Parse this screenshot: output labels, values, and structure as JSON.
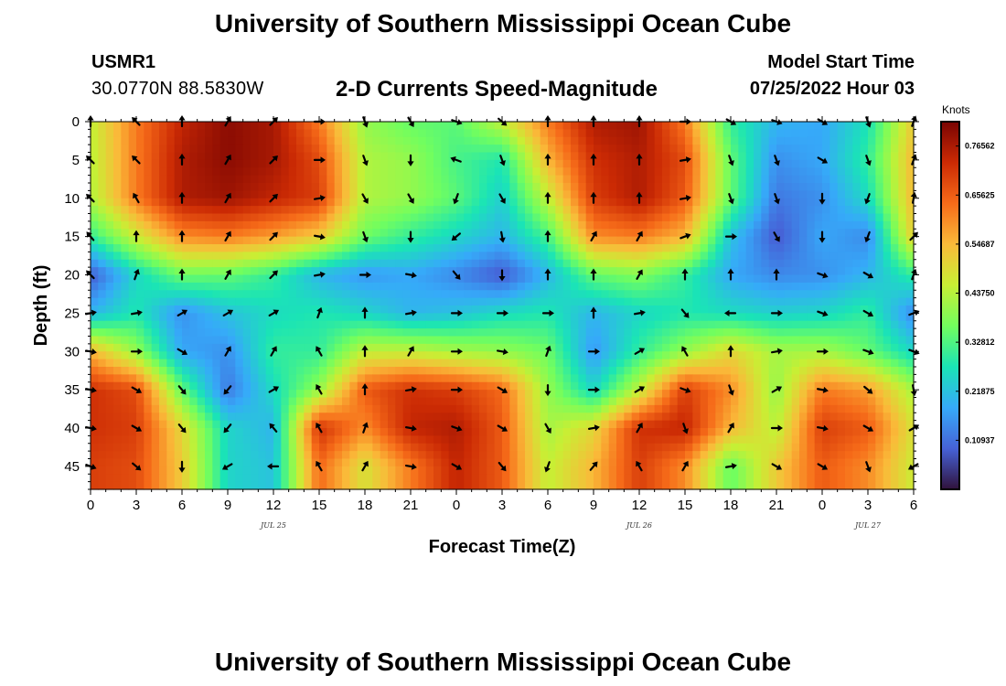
{
  "header": {
    "title": "University of Southern Mississippi Ocean Cube",
    "station_id": "USMR1",
    "station_coords": "30.0770N  88.5830W",
    "plot_title": "2-D Currents Speed-Magnitude",
    "model_label": "Model Start Time",
    "model_time": "07/25/2022 Hour 03"
  },
  "footer": {
    "title": "University of Southern Mississippi Ocean Cube"
  },
  "colors": {
    "palette": [
      "#30123b",
      "#4662d7",
      "#36aaf9",
      "#1ae4b6",
      "#72fe5e",
      "#c8ef34",
      "#faba39",
      "#f66b19",
      "#cb2a04",
      "#7a0403"
    ]
  },
  "chart_data": {
    "type": "heatmap",
    "title": "2-D Currents Speed-Magnitude",
    "xlabel": "Forecast Time(Z)",
    "ylabel": "Depth (ft)",
    "x_hours_from_jul25_00z": [
      0,
      3,
      6,
      9,
      12,
      15,
      18,
      21,
      24,
      27,
      30,
      33,
      36,
      39,
      42,
      45,
      48,
      51,
      54
    ],
    "x_tick_labels": [
      "0",
      "3",
      "6",
      "9",
      "12",
      "15",
      "18",
      "21",
      "0",
      "3",
      "6",
      "9",
      "12",
      "15",
      "18",
      "21",
      "0",
      "3",
      "6"
    ],
    "date_labels": [
      {
        "label": "JUL 25",
        "hour": 12
      },
      {
        "label": "JUL 26",
        "hour": 36
      },
      {
        "label": "JUL 27",
        "hour": 51
      }
    ],
    "xlim": [
      0,
      54
    ],
    "depths_ft": [
      0,
      5,
      10,
      15,
      20,
      25,
      30,
      35,
      40,
      45
    ],
    "y_tick_labels": [
      "0",
      "5",
      "10",
      "15",
      "20",
      "25",
      "30",
      "35",
      "40",
      "45"
    ],
    "ylim": [
      0,
      48
    ],
    "speed_knots": [
      [
        0.45,
        0.62,
        0.74,
        0.8,
        0.77,
        0.62,
        0.4,
        0.35,
        0.34,
        0.45,
        0.62,
        0.76,
        0.78,
        0.62,
        0.3,
        0.2,
        0.18,
        0.27,
        0.52
      ],
      [
        0.44,
        0.62,
        0.76,
        0.8,
        0.77,
        0.68,
        0.43,
        0.4,
        0.32,
        0.28,
        0.55,
        0.72,
        0.76,
        0.68,
        0.35,
        0.15,
        0.18,
        0.3,
        0.55
      ],
      [
        0.43,
        0.62,
        0.76,
        0.78,
        0.74,
        0.7,
        0.43,
        0.4,
        0.34,
        0.24,
        0.45,
        0.7,
        0.76,
        0.66,
        0.35,
        0.12,
        0.15,
        0.26,
        0.55
      ],
      [
        0.3,
        0.46,
        0.6,
        0.62,
        0.58,
        0.52,
        0.36,
        0.3,
        0.25,
        0.2,
        0.32,
        0.6,
        0.62,
        0.55,
        0.22,
        0.08,
        0.18,
        0.14,
        0.52
      ],
      [
        0.08,
        0.25,
        0.36,
        0.35,
        0.3,
        0.2,
        0.16,
        0.18,
        0.14,
        0.08,
        0.2,
        0.35,
        0.38,
        0.3,
        0.18,
        0.14,
        0.15,
        0.2,
        0.3
      ],
      [
        0.2,
        0.28,
        0.15,
        0.22,
        0.26,
        0.28,
        0.25,
        0.2,
        0.22,
        0.26,
        0.28,
        0.2,
        0.25,
        0.28,
        0.26,
        0.24,
        0.25,
        0.3,
        0.14
      ],
      [
        0.55,
        0.4,
        0.18,
        0.15,
        0.3,
        0.3,
        0.45,
        0.45,
        0.42,
        0.4,
        0.36,
        0.16,
        0.3,
        0.4,
        0.5,
        0.42,
        0.42,
        0.35,
        0.25
      ],
      [
        0.72,
        0.68,
        0.35,
        0.12,
        0.26,
        0.4,
        0.66,
        0.72,
        0.7,
        0.64,
        0.4,
        0.25,
        0.45,
        0.7,
        0.6,
        0.4,
        0.62,
        0.58,
        0.42
      ],
      [
        0.72,
        0.7,
        0.5,
        0.25,
        0.2,
        0.72,
        0.6,
        0.74,
        0.76,
        0.66,
        0.42,
        0.5,
        0.72,
        0.74,
        0.55,
        0.44,
        0.7,
        0.66,
        0.48
      ],
      [
        0.7,
        0.68,
        0.52,
        0.25,
        0.22,
        0.64,
        0.48,
        0.62,
        0.74,
        0.66,
        0.45,
        0.55,
        0.7,
        0.6,
        0.35,
        0.52,
        0.66,
        0.6,
        0.46
      ]
    ],
    "direction_deg": [
      [
        0,
        315,
        0,
        30,
        45,
        90,
        160,
        150,
        110,
        130,
        0,
        0,
        0,
        90,
        120,
        110,
        120,
        160,
        20
      ],
      [
        315,
        315,
        0,
        30,
        45,
        90,
        160,
        180,
        290,
        160,
        0,
        0,
        0,
        80,
        160,
        160,
        120,
        160,
        20
      ],
      [
        315,
        330,
        0,
        30,
        45,
        80,
        150,
        150,
        200,
        150,
        0,
        0,
        0,
        80,
        160,
        160,
        180,
        200,
        10
      ],
      [
        320,
        0,
        0,
        30,
        45,
        100,
        160,
        180,
        230,
        170,
        0,
        30,
        30,
        70,
        90,
        150,
        180,
        200,
        45
      ],
      [
        315,
        20,
        0,
        30,
        45,
        80,
        90,
        100,
        140,
        180,
        0,
        0,
        30,
        0,
        0,
        0,
        110,
        120,
        20
      ],
      [
        80,
        80,
        60,
        60,
        60,
        20,
        0,
        80,
        90,
        90,
        90,
        0,
        80,
        140,
        270,
        90,
        110,
        120,
        70
      ],
      [
        100,
        90,
        120,
        30,
        30,
        330,
        0,
        30,
        90,
        100,
        20,
        90,
        60,
        330,
        0,
        80,
        90,
        110,
        110
      ],
      [
        100,
        120,
        140,
        220,
        60,
        330,
        0,
        80,
        90,
        120,
        180,
        90,
        60,
        110,
        160,
        60,
        100,
        130,
        170
      ],
      [
        100,
        120,
        140,
        220,
        320,
        330,
        20,
        100,
        110,
        120,
        150,
        80,
        30,
        160,
        30,
        90,
        100,
        120,
        60
      ],
      [
        110,
        130,
        180,
        240,
        270,
        330,
        30,
        100,
        120,
        140,
        200,
        40,
        330,
        30,
        80,
        120,
        120,
        160,
        240
      ]
    ],
    "colorbar": {
      "unit": "Knots",
      "min": 0.0,
      "max": 0.82,
      "labels": [
        "0.76562",
        "0.65625",
        "0.54687",
        "0.43750",
        "0.32812",
        "0.21875",
        "0.10937"
      ],
      "values": [
        0.76562,
        0.65625,
        0.54687,
        0.4375,
        0.32812,
        0.21875,
        0.10937
      ]
    }
  }
}
